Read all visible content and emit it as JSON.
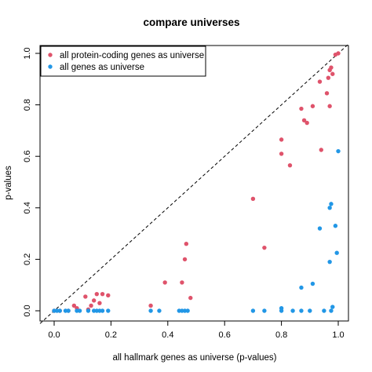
{
  "chart_data": {
    "type": "scatter",
    "title": "compare universes",
    "xlabel": "all hallmark genes as universe (p-values)",
    "ylabel": "p-values",
    "xlim": [
      0,
      1
    ],
    "ylim": [
      0,
      1
    ],
    "x_ticks": [
      "0.0",
      "0.2",
      "0.4",
      "0.6",
      "0.8",
      "1.0"
    ],
    "y_ticks": [
      "0.0",
      "0.2",
      "0.4",
      "0.6",
      "0.8",
      "1.0"
    ],
    "grid": false,
    "reference_line": "y = x (dashed)",
    "legend_position": "top-left",
    "series": [
      {
        "name": "all protein-coding genes as universe",
        "color": "#DF536B",
        "points": [
          [
            0.0,
            0.0
          ],
          [
            0.02,
            0.0
          ],
          [
            0.05,
            0.0
          ],
          [
            0.07,
            0.02
          ],
          [
            0.08,
            0.01
          ],
          [
            0.11,
            0.055
          ],
          [
            0.12,
            0.005
          ],
          [
            0.13,
            0.02
          ],
          [
            0.14,
            0.04
          ],
          [
            0.15,
            0.065
          ],
          [
            0.16,
            0.03
          ],
          [
            0.17,
            0.065
          ],
          [
            0.19,
            0.06
          ],
          [
            0.34,
            0.02
          ],
          [
            0.39,
            0.11
          ],
          [
            0.45,
            0.11
          ],
          [
            0.46,
            0.2
          ],
          [
            0.465,
            0.26
          ],
          [
            0.48,
            0.05
          ],
          [
            0.7,
            0.435
          ],
          [
            0.74,
            0.245
          ],
          [
            0.8,
            0.61
          ],
          [
            0.8,
            0.665
          ],
          [
            0.83,
            0.565
          ],
          [
            0.87,
            0.785
          ],
          [
            0.88,
            0.74
          ],
          [
            0.89,
            0.73
          ],
          [
            0.91,
            0.795
          ],
          [
            0.935,
            0.89
          ],
          [
            0.94,
            0.625
          ],
          [
            0.96,
            0.845
          ],
          [
            0.965,
            0.905
          ],
          [
            0.97,
            0.935
          ],
          [
            0.975,
            0.945
          ],
          [
            0.97,
            0.795
          ],
          [
            0.98,
            0.92
          ],
          [
            0.99,
            0.995
          ],
          [
            1.0,
            1.0
          ]
        ]
      },
      {
        "name": "all genes as universe",
        "color": "#2297E6",
        "points": [
          [
            0.0,
            0.0
          ],
          [
            0.01,
            0.0
          ],
          [
            0.02,
            0.0
          ],
          [
            0.04,
            0.0
          ],
          [
            0.05,
            0.0
          ],
          [
            0.08,
            0.0
          ],
          [
            0.09,
            0.0
          ],
          [
            0.12,
            0.0
          ],
          [
            0.14,
            0.0
          ],
          [
            0.15,
            0.0
          ],
          [
            0.16,
            0.0
          ],
          [
            0.17,
            0.0
          ],
          [
            0.19,
            0.0
          ],
          [
            0.34,
            0.0
          ],
          [
            0.37,
            0.0
          ],
          [
            0.44,
            0.0
          ],
          [
            0.45,
            0.0
          ],
          [
            0.46,
            0.0
          ],
          [
            0.47,
            0.0
          ],
          [
            0.7,
            0.0
          ],
          [
            0.74,
            0.0
          ],
          [
            0.8,
            0.0
          ],
          [
            0.8,
            0.01
          ],
          [
            0.84,
            0.0
          ],
          [
            0.87,
            0.0
          ],
          [
            0.87,
            0.09
          ],
          [
            0.9,
            0.0
          ],
          [
            0.91,
            0.105
          ],
          [
            0.935,
            0.32
          ],
          [
            0.95,
            0.0
          ],
          [
            0.97,
            0.19
          ],
          [
            0.97,
            0.4
          ],
          [
            0.975,
            0.415
          ],
          [
            0.975,
            0.0
          ],
          [
            0.98,
            0.015
          ],
          [
            0.99,
            0.33
          ],
          [
            0.995,
            0.225
          ],
          [
            1.0,
            0.62
          ]
        ]
      }
    ]
  }
}
